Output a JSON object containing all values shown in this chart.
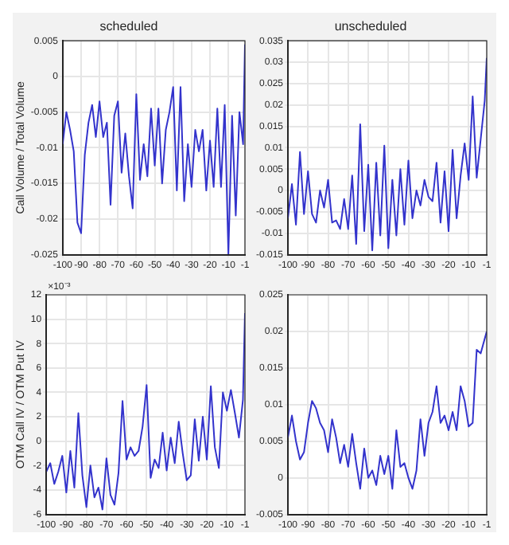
{
  "chart_data": [
    {
      "type": "line",
      "title": "scheduled",
      "ylabel": "Call Volume / Total Volume",
      "x": [
        -100,
        -98,
        -96,
        -94,
        -92,
        -90,
        -88,
        -86,
        -84,
        -82,
        -80,
        -78,
        -76,
        -74,
        -72,
        -70,
        -68,
        -66,
        -64,
        -62,
        -60,
        -58,
        -56,
        -54,
        -52,
        -50,
        -48,
        -46,
        -44,
        -42,
        -40,
        -38,
        -36,
        -34,
        -32,
        -30,
        -28,
        -26,
        -24,
        -22,
        -20,
        -18,
        -16,
        -14,
        -12,
        -10,
        -8,
        -6,
        -4,
        -2,
        -1
      ],
      "series": [
        {
          "color": "#3333cc",
          "values": [
            -0.0095,
            -0.005,
            -0.0075,
            -0.0105,
            -0.0205,
            -0.022,
            -0.011,
            -0.0065,
            -0.004,
            -0.0085,
            -0.0035,
            -0.0085,
            -0.0065,
            -0.018,
            -0.0055,
            -0.0035,
            -0.0135,
            -0.008,
            -0.014,
            -0.0185,
            -0.0025,
            -0.0145,
            -0.0095,
            -0.014,
            -0.0045,
            -0.0125,
            -0.0045,
            -0.015,
            -0.0075,
            -0.005,
            -0.0015,
            -0.016,
            -0.0015,
            -0.0175,
            -0.0095,
            -0.0155,
            -0.0075,
            -0.0105,
            -0.0075,
            -0.016,
            -0.009,
            -0.0155,
            -0.0045,
            -0.0155,
            -0.004,
            -0.025,
            -0.0055,
            -0.0195,
            -0.005,
            -0.0095,
            0.0045
          ]
        }
      ],
      "xlim": [
        -100,
        -1
      ],
      "xticks": [
        -100,
        -90,
        -80,
        -70,
        -60,
        -50,
        -40,
        -30,
        -20,
        -10,
        -1
      ],
      "ylim": [
        -0.025,
        0.005
      ],
      "yticks": [
        -0.025,
        -0.02,
        -0.015,
        -0.01,
        -0.005,
        0,
        0.005
      ],
      "grid": true,
      "legend": false,
      "marker": "none",
      "line_style": "solid"
    },
    {
      "type": "line",
      "title": "unscheduled",
      "x": [
        -100,
        -98,
        -96,
        -94,
        -92,
        -90,
        -88,
        -86,
        -84,
        -82,
        -80,
        -78,
        -76,
        -74,
        -72,
        -70,
        -68,
        -66,
        -64,
        -62,
        -60,
        -58,
        -56,
        -54,
        -52,
        -50,
        -48,
        -46,
        -44,
        -42,
        -40,
        -38,
        -36,
        -34,
        -32,
        -30,
        -28,
        -26,
        -24,
        -22,
        -20,
        -18,
        -16,
        -14,
        -12,
        -10,
        -8,
        -6,
        -4,
        -2,
        -1
      ],
      "series": [
        {
          "color": "#3333cc",
          "values": [
            -0.0065,
            0.0015,
            -0.008,
            0.009,
            -0.0055,
            0.0045,
            -0.0055,
            -0.0075,
            0,
            -0.004,
            0.0025,
            -0.0075,
            -0.007,
            -0.009,
            -0.002,
            -0.009,
            0.0035,
            -0.0125,
            0.0155,
            -0.0095,
            0.006,
            -0.014,
            0.0065,
            -0.0105,
            0.0105,
            -0.0135,
            0.0025,
            -0.0105,
            0.005,
            -0.008,
            0.007,
            -0.0065,
            0,
            -0.0035,
            0.0025,
            -0.0015,
            -0.0025,
            0.0065,
            -0.0075,
            0.0045,
            -0.0095,
            0.0095,
            -0.0065,
            0.0035,
            0.011,
            0.0025,
            0.022,
            0.003,
            0.012,
            0.021,
            0.031
          ]
        }
      ],
      "xlim": [
        -100,
        -1
      ],
      "xticks": [
        -100,
        -90,
        -80,
        -70,
        -60,
        -50,
        -40,
        -30,
        -20,
        -10,
        -1
      ],
      "ylim": [
        -0.015,
        0.035
      ],
      "yticks": [
        -0.015,
        -0.01,
        -0.005,
        0,
        0.005,
        0.01,
        0.015,
        0.02,
        0.025,
        0.03,
        0.035
      ],
      "grid": true,
      "legend": false,
      "marker": "none",
      "line_style": "solid"
    },
    {
      "type": "line",
      "ylabel": "OTM Call IV / OTM Put IV",
      "annotations": [
        "×10⁻³"
      ],
      "x": [
        -100,
        -98,
        -96,
        -94,
        -92,
        -90,
        -88,
        -86,
        -84,
        -82,
        -80,
        -78,
        -76,
        -74,
        -72,
        -70,
        -68,
        -66,
        -64,
        -62,
        -60,
        -58,
        -56,
        -54,
        -52,
        -50,
        -48,
        -46,
        -44,
        -42,
        -40,
        -38,
        -36,
        -34,
        -32,
        -30,
        -28,
        -26,
        -24,
        -22,
        -20,
        -18,
        -16,
        -14,
        -12,
        -10,
        -8,
        -6,
        -4,
        -2,
        -1
      ],
      "series": [
        {
          "color": "#3333cc",
          "values": [
            -2.5,
            -1.8,
            -3.5,
            -2.5,
            -1.2,
            -4.2,
            -0.8,
            -3.8,
            2.3,
            -2.8,
            -5.4,
            -2,
            -4.6,
            -3.8,
            -5.6,
            -1.4,
            -4.4,
            -5.2,
            -2.6,
            3.3,
            -1.5,
            -0.5,
            -1.2,
            -0.8,
            1.2,
            4.6,
            -3,
            -1.5,
            -2.2,
            0.7,
            -2.4,
            0.3,
            -1.8,
            1.6,
            -1,
            -3.2,
            -2.8,
            1.8,
            -1.6,
            2,
            -1.5,
            4.5,
            -0.5,
            -2.2,
            4,
            2.5,
            4.2,
            2.3,
            0.3,
            3.4,
            10.5
          ]
        }
      ],
      "xlim": [
        -100,
        -1
      ],
      "xticks": [
        -100,
        -90,
        -80,
        -70,
        -60,
        -50,
        -40,
        -30,
        -20,
        -10,
        -1
      ],
      "ylim": [
        -6,
        12
      ],
      "yticks": [
        -6,
        -4,
        -2,
        0,
        2,
        4,
        6,
        8,
        10,
        12
      ],
      "grid": true,
      "legend": false,
      "marker": "none",
      "line_style": "solid"
    },
    {
      "type": "line",
      "x": [
        -100,
        -98,
        -96,
        -94,
        -92,
        -90,
        -88,
        -86,
        -84,
        -82,
        -80,
        -78,
        -76,
        -74,
        -72,
        -70,
        -68,
        -66,
        -64,
        -62,
        -60,
        -58,
        -56,
        -54,
        -52,
        -50,
        -48,
        -46,
        -44,
        -42,
        -40,
        -38,
        -36,
        -34,
        -32,
        -30,
        -28,
        -26,
        -24,
        -22,
        -20,
        -18,
        -16,
        -14,
        -12,
        -10,
        -8,
        -6,
        -4,
        -2,
        -1
      ],
      "series": [
        {
          "color": "#3333cc",
          "values": [
            0.0055,
            0.0085,
            0.005,
            0.0025,
            0.0035,
            0.0075,
            0.0105,
            0.0095,
            0.0075,
            0.0065,
            0.0035,
            0.008,
            0.0055,
            0.002,
            0.0045,
            0.0015,
            0.006,
            0.002,
            -0.0015,
            0.004,
            0,
            0.001,
            -0.001,
            0.003,
            0.0005,
            0.003,
            -0.0015,
            0.0065,
            0.0015,
            0.002,
            0,
            -0.0015,
            0.001,
            0.008,
            0.003,
            0.0075,
            0.009,
            0.0125,
            0.0075,
            0.0085,
            0.0065,
            0.009,
            0.0065,
            0.0125,
            0.0105,
            0.007,
            0.0075,
            0.0175,
            0.017,
            0.019,
            0.02
          ]
        }
      ],
      "xlim": [
        -100,
        -1
      ],
      "xticks": [
        -100,
        -90,
        -80,
        -70,
        -60,
        -50,
        -40,
        -30,
        -20,
        -10,
        -1
      ],
      "ylim": [
        -0.005,
        0.025
      ],
      "yticks": [
        -0.005,
        0,
        0.005,
        0.01,
        0.015,
        0.02,
        0.025
      ],
      "grid": true,
      "legend": false,
      "marker": "none",
      "line_style": "solid"
    }
  ]
}
